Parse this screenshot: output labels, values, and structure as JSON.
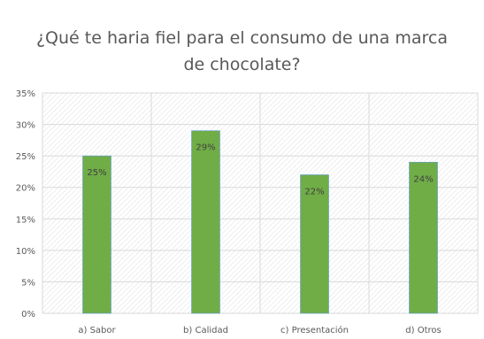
{
  "chart_data": {
    "type": "bar",
    "title_line1": "¿Qué te haria fiel para el consumo de una marca",
    "title_line2": "de chocolate?",
    "categories": [
      "a) Sabor",
      "b) Calidad",
      "c) Presentación",
      "d) Otros"
    ],
    "values": [
      25,
      29,
      22,
      24
    ],
    "data_labels": [
      "25%",
      "29%",
      "22%",
      "24%"
    ],
    "y_ticks": [
      "0%",
      "5%",
      "10%",
      "15%",
      "20%",
      "25%",
      "30%",
      "35%"
    ],
    "ylim": [
      0,
      35
    ],
    "y_step": 5,
    "grid": true,
    "legend": "none",
    "colors": {
      "bar": "#70ad47",
      "bar_edge": "#5b9bd5",
      "grid": "#d9d9d9",
      "plot_hatch": "#e6e6e6"
    }
  }
}
